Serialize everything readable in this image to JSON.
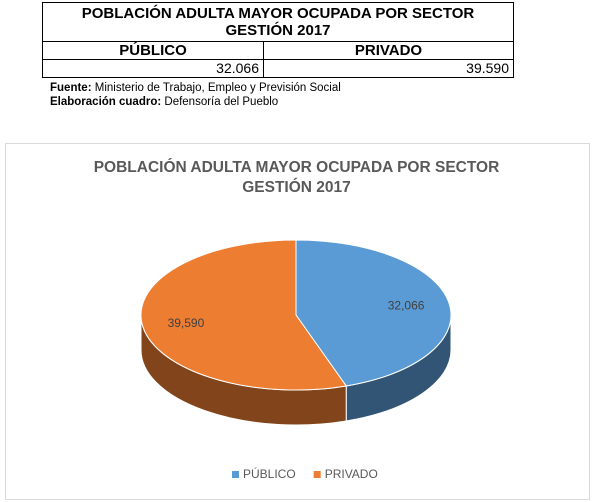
{
  "table": {
    "title": "POBLACIÓN ADULTA MAYOR OCUPADA POR SECTOR GESTIÓN 2017",
    "header": [
      "PÚBLICO",
      "PRIVADO"
    ],
    "rows": [
      [
        "32.066",
        "39.590"
      ]
    ]
  },
  "source": {
    "label": "Fuente:",
    "text": "Ministerio de Trabajo, Empleo y Previsión Social"
  },
  "prepared_by": {
    "label": "Elaboración cuadro:",
    "text": "Defensoría del Pueblo"
  },
  "chart_data": {
    "type": "pie",
    "title": "POBLACIÓN ADULTA MAYOR OCUPADA POR SECTOR GESTIÓN 2017",
    "categories": [
      "PÚBLICO",
      "PRIVADO"
    ],
    "values": [
      32066,
      39590
    ],
    "value_labels": [
      "32,066",
      "39,590"
    ],
    "colors": [
      "#5b9bd5",
      "#ed7d31"
    ],
    "legend": "bottom"
  }
}
